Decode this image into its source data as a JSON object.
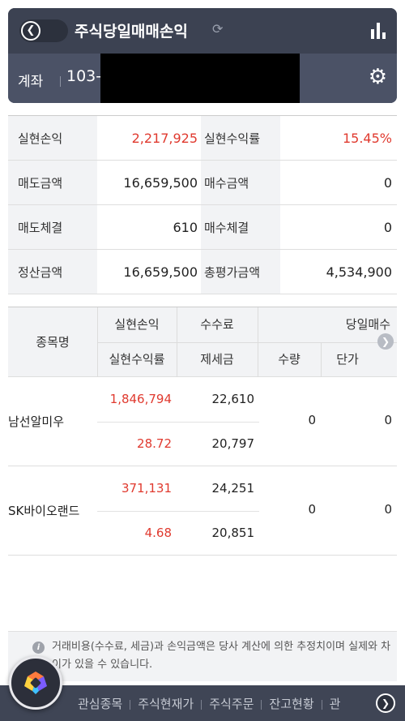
{
  "header": {
    "title": "주식당일매매손익",
    "account_label": "계좌",
    "account_number": "103-"
  },
  "summary": [
    {
      "label": "실현손익",
      "value": "2,217,925",
      "label2": "실현수익률",
      "value2": "15.45%",
      "red": true
    },
    {
      "label": "매도금액",
      "value": "16,659,500",
      "label2": "매수금액",
      "value2": "0",
      "red": false
    },
    {
      "label": "매도체결",
      "value": "610",
      "label2": "매수체결",
      "value2": "0",
      "red": false
    },
    {
      "label": "정산금액",
      "value": "16,659,500",
      "label2": "총평가금액",
      "value2": "4,534,900",
      "red": false
    }
  ],
  "stocks_header": {
    "name": "종목명",
    "realized_pl": "실현손익",
    "fee": "수수료",
    "buy_today": "당일매수",
    "realized_rate": "실현수익률",
    "tax": "제세금",
    "qty": "수량",
    "price": "단가"
  },
  "stocks": [
    {
      "name": "남선알미우",
      "realized_pl": "1,846,794",
      "fee": "22,610",
      "realized_rate": "28.72",
      "tax": "20,797",
      "qty": "0",
      "price": "0"
    },
    {
      "name": "SK바이오랜드",
      "realized_pl": "371,131",
      "fee": "24,251",
      "realized_rate": "4.68",
      "tax": "20,851",
      "qty": "0",
      "price": "0"
    }
  ],
  "notice": "거래비용(수수료, 세금)과 손익금액은 당사 계산에 의한 추정치이며 실제와 차이가 있을 수 있습니다.",
  "bottom_nav": [
    "관심종목",
    "주식현재가",
    "주식주문",
    "잔고현황",
    "관"
  ],
  "colors": {
    "accent_red": "#e03a2f",
    "header_bg": "#3c4252",
    "account_bg": "#4b5266"
  }
}
